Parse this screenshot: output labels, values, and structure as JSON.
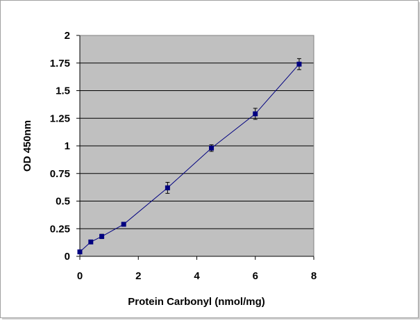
{
  "chart_data": {
    "type": "line",
    "title": "",
    "xlabel": "Protein Carbonyl (nmol/mg)",
    "ylabel": "OD 450nm",
    "xlim": [
      0,
      8
    ],
    "ylim": [
      0,
      2
    ],
    "x_ticks": [
      "0",
      "2",
      "4",
      "6",
      "8"
    ],
    "y_ticks": [
      "0",
      "0.25",
      "0.5",
      "0.75",
      "1",
      "1.25",
      "1.5",
      "1.75",
      "2"
    ],
    "grid": "horizontal",
    "legend": "none",
    "series": [
      {
        "x": [
          0,
          0.375,
          0.75,
          1.5,
          3,
          4.5,
          6,
          7.5
        ],
        "y": [
          0.04,
          0.13,
          0.18,
          0.29,
          0.62,
          0.98,
          1.29,
          1.74
        ],
        "error": [
          0.01,
          0.015,
          0.02,
          0.01,
          0.05,
          0.03,
          0.05,
          0.05
        ]
      }
    ],
    "colors": {
      "series": "#000080",
      "plot_background": "#c0c0c0",
      "gridline": "#000000",
      "frame_border": "#a0a0a0"
    }
  }
}
